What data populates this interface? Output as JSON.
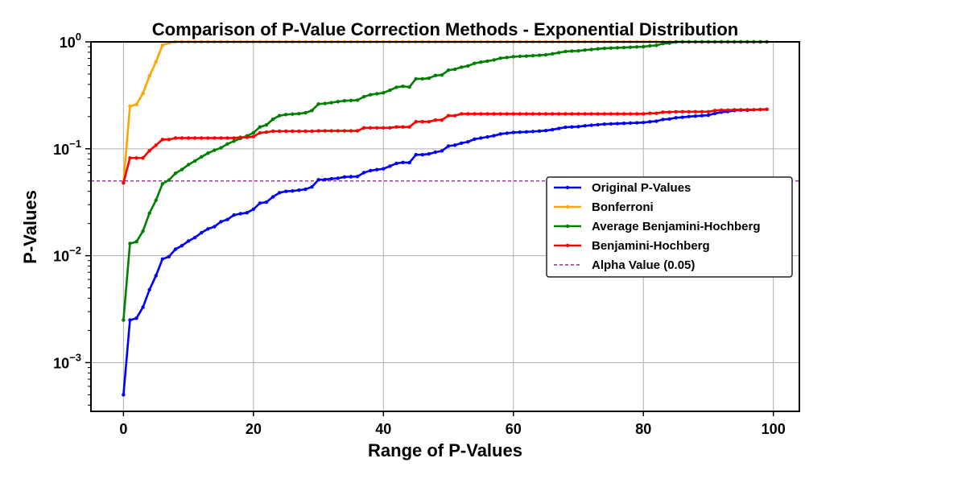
{
  "chart_data": {
    "type": "line",
    "title": "Comparison of P-Value Correction Methods - Exponential Distribution",
    "xlabel": "Range of P-Values",
    "ylabel": "P-Values",
    "yscale": "log",
    "xlim": [
      -5,
      104
    ],
    "ylim": [
      0.00035,
      1.0
    ],
    "grid": true,
    "legend_position": "center-right",
    "x_ticks": [
      0,
      20,
      40,
      60,
      80,
      100
    ],
    "x_tick_labels": [
      "0",
      "20",
      "40",
      "60",
      "80",
      "100"
    ],
    "y_ticks": [
      0.001,
      0.01,
      0.1,
      1
    ],
    "y_tick_labels": [
      {
        "base": "10",
        "exp": "−3"
      },
      {
        "base": "10",
        "exp": "−2"
      },
      {
        "base": "10",
        "exp": "−1"
      },
      {
        "base": "10",
        "exp": "0"
      }
    ],
    "alpha_line": {
      "label": "Alpha Value (0.05)",
      "value": 0.05,
      "color": "#800080"
    },
    "series": [
      {
        "name": "Original P-Values",
        "color": "#0000ff",
        "x_start": 0,
        "values": [
          0.0005,
          0.0025,
          0.0026,
          0.0033,
          0.0048,
          0.0065,
          0.0093,
          0.0098,
          0.0115,
          0.0124,
          0.0137,
          0.0148,
          0.0164,
          0.0178,
          0.0187,
          0.0208,
          0.0218,
          0.024,
          0.0247,
          0.0252,
          0.0272,
          0.031,
          0.0317,
          0.0355,
          0.0388,
          0.04,
          0.0403,
          0.041,
          0.0418,
          0.044,
          0.0513,
          0.0515,
          0.0524,
          0.053,
          0.0545,
          0.0548,
          0.055,
          0.0598,
          0.0625,
          0.0638,
          0.065,
          0.0688,
          0.073,
          0.0745,
          0.0742,
          0.088,
          0.088,
          0.0895,
          0.093,
          0.0955,
          0.106,
          0.108,
          0.113,
          0.116,
          0.123,
          0.126,
          0.129,
          0.1325,
          0.1375,
          0.14,
          0.142,
          0.143,
          0.144,
          0.145,
          0.1465,
          0.148,
          0.151,
          0.155,
          0.159,
          0.16,
          0.161,
          0.164,
          0.166,
          0.168,
          0.17,
          0.171,
          0.172,
          0.173,
          0.174,
          0.175,
          0.176,
          0.179,
          0.181,
          0.188,
          0.19,
          0.195,
          0.197,
          0.2,
          0.202,
          0.204,
          0.206,
          0.214,
          0.22,
          0.223,
          0.228,
          0.23,
          0.23,
          0.232,
          0.233,
          0.234
        ]
      },
      {
        "name": "Bonferroni",
        "color": "#ffa500",
        "x_start": 0,
        "values": [
          0.048,
          0.25,
          0.26,
          0.33,
          0.48,
          0.65,
          0.93,
          0.98,
          1,
          1,
          1,
          1,
          1,
          1,
          1,
          1,
          1,
          1,
          1,
          1,
          1,
          1,
          1,
          1,
          1,
          1,
          1,
          1,
          1,
          1,
          1,
          1,
          1,
          1,
          1,
          1,
          1,
          1,
          1,
          1,
          1,
          1,
          1,
          1,
          1,
          1,
          1,
          1,
          1,
          1,
          1,
          1,
          1,
          1,
          1,
          1,
          1,
          1,
          1,
          1,
          1,
          1,
          1,
          1,
          1,
          1,
          1,
          1,
          1,
          1,
          1,
          1,
          1,
          1,
          1,
          1,
          1,
          1,
          1,
          1,
          1,
          1,
          1,
          1,
          1,
          1,
          1,
          1,
          1,
          1,
          1,
          1,
          1,
          1,
          1,
          1,
          1,
          1,
          1,
          1
        ]
      },
      {
        "name": "Average Benjamini-Hochberg",
        "color": "#008000",
        "x_start": 0,
        "values": [
          0.0025,
          0.013,
          0.0135,
          0.017,
          0.025,
          0.033,
          0.047,
          0.051,
          0.059,
          0.064,
          0.071,
          0.077,
          0.084,
          0.091,
          0.097,
          0.102,
          0.111,
          0.118,
          0.125,
          0.132,
          0.141,
          0.16,
          0.167,
          0.189,
          0.204,
          0.209,
          0.211,
          0.213,
          0.217,
          0.228,
          0.262,
          0.265,
          0.27,
          0.276,
          0.281,
          0.283,
          0.285,
          0.307,
          0.32,
          0.327,
          0.334,
          0.353,
          0.376,
          0.384,
          0.378,
          0.451,
          0.451,
          0.457,
          0.485,
          0.49,
          0.544,
          0.554,
          0.58,
          0.595,
          0.63,
          0.646,
          0.66,
          0.677,
          0.703,
          0.714,
          0.726,
          0.732,
          0.736,
          0.742,
          0.749,
          0.757,
          0.773,
          0.792,
          0.813,
          0.82,
          0.824,
          0.838,
          0.848,
          0.86,
          0.87,
          0.875,
          0.88,
          0.885,
          0.89,
          0.896,
          0.901,
          0.917,
          0.927,
          0.963,
          0.973,
          0.998,
          1,
          1,
          1,
          1,
          1,
          1,
          1,
          1,
          1,
          1,
          1,
          1,
          1,
          1
        ]
      },
      {
        "name": "Benjamini-Hochberg",
        "color": "#ff0000",
        "x_start": 0,
        "values": [
          0.048,
          0.082,
          0.082,
          0.082,
          0.096,
          0.108,
          0.122,
          0.122,
          0.126,
          0.126,
          0.126,
          0.126,
          0.126,
          0.126,
          0.126,
          0.126,
          0.126,
          0.126,
          0.128,
          0.128,
          0.13,
          0.141,
          0.143,
          0.146,
          0.146,
          0.146,
          0.146,
          0.146,
          0.146,
          0.146,
          0.147,
          0.147,
          0.147,
          0.147,
          0.147,
          0.147,
          0.147,
          0.157,
          0.157,
          0.157,
          0.157,
          0.157,
          0.16,
          0.16,
          0.16,
          0.179,
          0.179,
          0.179,
          0.186,
          0.186,
          0.204,
          0.204,
          0.212,
          0.212,
          0.212,
          0.212,
          0.212,
          0.212,
          0.212,
          0.212,
          0.212,
          0.212,
          0.212,
          0.212,
          0.212,
          0.212,
          0.212,
          0.212,
          0.212,
          0.212,
          0.212,
          0.212,
          0.212,
          0.212,
          0.212,
          0.212,
          0.212,
          0.212,
          0.212,
          0.212,
          0.212,
          0.215,
          0.215,
          0.22,
          0.22,
          0.222,
          0.222,
          0.222,
          0.222,
          0.222,
          0.222,
          0.228,
          0.23,
          0.23,
          0.232,
          0.232,
          0.232,
          0.232,
          0.233,
          0.234
        ]
      }
    ]
  }
}
